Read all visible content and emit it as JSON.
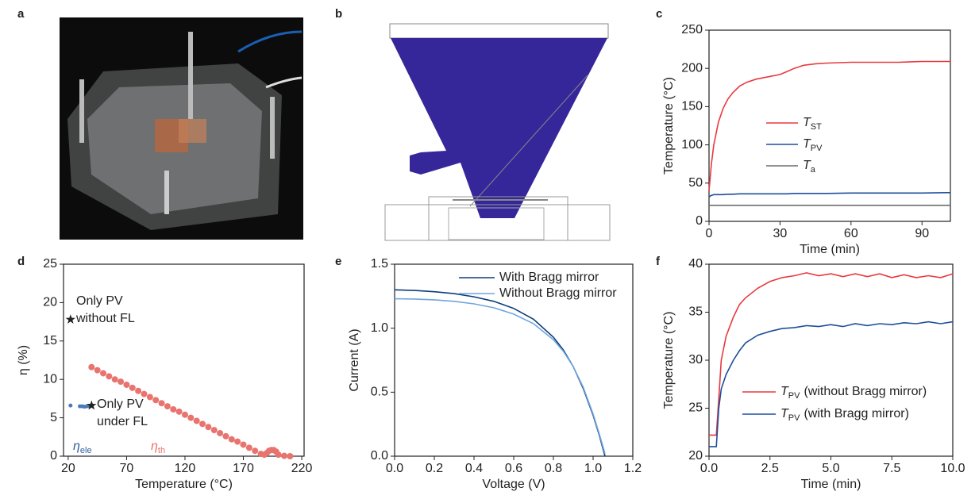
{
  "panel_labels": [
    "a",
    "b",
    "c",
    "d",
    "e",
    "f"
  ],
  "chart_data": [
    {
      "type": "line",
      "xlabel": "Time (min)",
      "ylabel": "Temperature (°C)",
      "x": [
        0,
        1,
        2,
        4,
        6,
        8,
        10,
        13,
        16,
        20,
        25,
        30,
        33,
        36,
        40,
        45,
        50,
        60,
        70,
        80,
        90,
        100,
        102
      ],
      "xlim": [
        0,
        102
      ],
      "xticks": [
        0,
        30,
        60,
        90
      ],
      "ylim": [
        0,
        250
      ],
      "yticks": [
        0,
        50,
        100,
        150,
        200,
        250
      ],
      "legend": true,
      "series": [
        {
          "name": "T",
          "sub": "ST",
          "color": "#e8393f",
          "values": [
            40,
            75,
            100,
            130,
            148,
            160,
            168,
            177,
            182,
            186,
            189,
            192,
            196,
            200,
            204,
            206,
            207,
            208,
            208,
            208,
            209,
            209,
            209
          ]
        },
        {
          "name": "T",
          "sub": "PV",
          "color": "#1f4e9c",
          "values": [
            32,
            34,
            35,
            35,
            35,
            35.5,
            35.5,
            36,
            36,
            36,
            36,
            36,
            36,
            36.5,
            36.5,
            36.5,
            36.5,
            37,
            37,
            37,
            37,
            37.5,
            37.5
          ]
        },
        {
          "name": "T",
          "sub": "a",
          "color": "#6d6d6d",
          "values": [
            21,
            21,
            21,
            21,
            21,
            21,
            21,
            21,
            21,
            21,
            21,
            21,
            21,
            21,
            21,
            21,
            21,
            21,
            21,
            21,
            21,
            21,
            21
          ]
        }
      ]
    },
    {
      "type": "scatter",
      "xlabel": "Temperature (°C)",
      "ylabel": "η (%)",
      "xlim": [
        16,
        222
      ],
      "xticks": [
        20,
        70,
        120,
        170,
        220
      ],
      "ylim": [
        0,
        25
      ],
      "yticks": [
        0,
        5,
        10,
        15,
        20,
        25
      ],
      "series": [
        {
          "color": "#e8736f",
          "marker": "circle",
          "x": [
            40,
            45,
            50,
            55,
            60,
            65,
            70,
            75,
            80,
            85,
            90,
            95,
            100,
            105,
            110,
            115,
            120,
            125,
            130,
            135,
            140,
            145,
            150,
            155,
            160,
            165,
            170,
            175,
            180,
            185,
            188,
            190,
            192,
            194,
            196,
            198,
            200,
            205,
            210
          ],
          "values": [
            11.6,
            11.2,
            10.8,
            10.4,
            10.0,
            9.7,
            9.3,
            8.9,
            8.5,
            8.1,
            7.7,
            7.3,
            6.9,
            6.5,
            6.1,
            5.8,
            5.4,
            5.0,
            4.6,
            4.2,
            3.8,
            3.4,
            3.0,
            2.6,
            2.2,
            1.9,
            1.5,
            1.1,
            0.7,
            0.3,
            0.2,
            0.4,
            0.7,
            0.8,
            0.8,
            0.6,
            0.2,
            0.05,
            0
          ]
        },
        {
          "color": "#4a7bb7",
          "marker": "dot",
          "x": [
            22,
            30,
            32,
            34,
            36,
            38
          ],
          "values": [
            6.6,
            6.5,
            6.5,
            6.45,
            6.5,
            6.5
          ]
        },
        {
          "color": "#222222",
          "marker": "star",
          "x": [
            22,
            40
          ],
          "values": [
            17.8,
            6.6
          ]
        }
      ],
      "annotations": [
        {
          "text": "Only PV"
        },
        {
          "text": "without FL"
        },
        {
          "text": "Only PV"
        },
        {
          "text": "under FL"
        },
        {
          "text": "η",
          "sub": "ele",
          "color": "#2f5f9e"
        },
        {
          "text": "η",
          "sub": "th",
          "color": "#e8736f"
        }
      ]
    },
    {
      "type": "line",
      "xlabel": "Voltage (V)",
      "ylabel": "Current (A)",
      "x": [
        0,
        0.1,
        0.2,
        0.3,
        0.4,
        0.5,
        0.6,
        0.7,
        0.8,
        0.85,
        0.9,
        0.95,
        1.0,
        1.03,
        1.06
      ],
      "xlim": [
        0,
        1.2
      ],
      "xticks": [
        {
          "value": 0,
          "label": "0.0"
        },
        {
          "value": 0.2,
          "label": "0.2"
        },
        {
          "value": 0.4,
          "label": "0.4"
        },
        {
          "value": 0.6,
          "label": "0.6"
        },
        {
          "value": 0.8,
          "label": "0.8"
        },
        {
          "value": 1,
          "label": "1.0"
        },
        {
          "value": 1.2,
          "label": "1.2"
        }
      ],
      "ylim": [
        0,
        1.5
      ],
      "yticks": [
        {
          "value": 0,
          "label": "0.0"
        },
        {
          "value": 0.5,
          "label": "0.5"
        },
        {
          "value": 1,
          "label": "1.0"
        },
        {
          "value": 1.5,
          "label": "1.5"
        }
      ],
      "legend": true,
      "series": [
        {
          "name": "With Bragg mirror",
          "color": "#0d3d7a",
          "values": [
            1.3,
            1.295,
            1.285,
            1.27,
            1.245,
            1.21,
            1.155,
            1.07,
            0.93,
            0.83,
            0.7,
            0.53,
            0.32,
            0.17,
            0
          ]
        },
        {
          "name": "Without Bragg mirror",
          "color": "#6fa6dc",
          "values": [
            1.23,
            1.228,
            1.222,
            1.21,
            1.19,
            1.16,
            1.11,
            1.035,
            0.91,
            0.82,
            0.7,
            0.54,
            0.33,
            0.18,
            0.02
          ]
        }
      ]
    },
    {
      "type": "line",
      "xlabel": "Time (min)",
      "ylabel": "Temperature (°C)",
      "x": [
        0,
        0.2,
        0.3,
        0.4,
        0.5,
        0.7,
        1,
        1.25,
        1.5,
        2,
        2.5,
        3,
        3.5,
        4,
        4.5,
        5,
        5.5,
        6,
        6.5,
        7,
        7.5,
        8,
        8.5,
        9,
        9.5,
        10
      ],
      "xlim": [
        0,
        10
      ],
      "xticks": [
        {
          "value": 0,
          "label": "0.0"
        },
        {
          "value": 2.5,
          "label": "2.5"
        },
        {
          "value": 5,
          "label": "5.0"
        },
        {
          "value": 7.5,
          "label": "7.5"
        },
        {
          "value": 10,
          "label": "10.0"
        }
      ],
      "ylim": [
        20,
        40
      ],
      "yticks": [
        20,
        25,
        30,
        35,
        40
      ],
      "legend": true,
      "series": [
        {
          "name": "T",
          "sub": "PV",
          "suffix": "(without Bragg mirror)",
          "color": "#e8393f",
          "values": [
            22.2,
            22.2,
            22.2,
            26,
            30,
            32.5,
            34.5,
            35.8,
            36.5,
            37.5,
            38.2,
            38.6,
            38.8,
            39.1,
            38.8,
            39.0,
            38.7,
            39.0,
            38.7,
            39.0,
            38.6,
            38.9,
            38.6,
            38.8,
            38.6,
            39.0
          ]
        },
        {
          "name": "T",
          "sub": "PV",
          "suffix": "(with Bragg mirror)",
          "color": "#1f4e9c",
          "values": [
            21,
            21,
            21,
            25,
            27,
            28.5,
            30,
            31,
            31.8,
            32.6,
            33,
            33.3,
            33.4,
            33.6,
            33.5,
            33.7,
            33.5,
            33.8,
            33.6,
            33.8,
            33.7,
            33.9,
            33.8,
            34.0,
            33.8,
            34.0
          ]
        }
      ]
    }
  ]
}
